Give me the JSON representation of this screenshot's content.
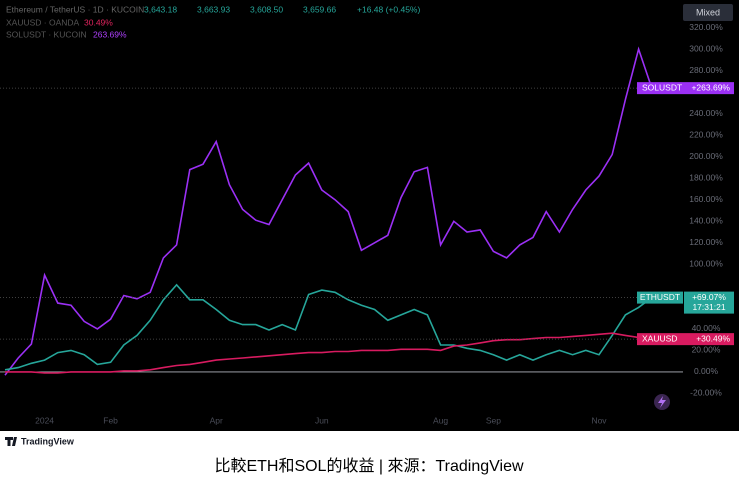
{
  "header": {
    "symbol_line": "Ethereum / TetherUS · 1D · KUCOIN",
    "ohlc": [
      "3,643.18",
      "3,663.93",
      "3,608.50",
      "3,659.66",
      "+16.48 (+0.45%)"
    ],
    "mixed_button": "Mixed"
  },
  "chart_data": {
    "type": "line",
    "categories": [
      null,
      null,
      null,
      "2024",
      null,
      null,
      null,
      null,
      "Feb",
      null,
      null,
      null,
      null,
      null,
      null,
      null,
      "Apr",
      null,
      null,
      null,
      null,
      null,
      null,
      null,
      "Jun",
      null,
      null,
      null,
      null,
      null,
      null,
      null,
      null,
      "Aug",
      null,
      null,
      null,
      "Sep",
      null,
      null,
      null,
      null,
      null,
      null,
      null,
      "Nov",
      null,
      null,
      null,
      null
    ],
    "ylim": [
      -40,
      340
    ],
    "yticks": [
      {
        "value": 320,
        "label": "320.00%"
      },
      {
        "value": 300,
        "label": "300.00%"
      },
      {
        "value": 280,
        "label": "280.00%"
      },
      {
        "value": 240,
        "label": "240.00%"
      },
      {
        "value": 220,
        "label": "220.00%"
      },
      {
        "value": 200,
        "label": "200.00%"
      },
      {
        "value": 180,
        "label": "180.00%"
      },
      {
        "value": 160,
        "label": "160.00%"
      },
      {
        "value": 140,
        "label": "140.00%"
      },
      {
        "value": 120,
        "label": "120.00%"
      },
      {
        "value": 100,
        "label": "100.00%"
      },
      {
        "value": 40,
        "label": "40.00%"
      },
      {
        "value": 20,
        "label": "20.00%"
      },
      {
        "value": 0,
        "label": "0.00%"
      },
      {
        "value": -20,
        "label": "-20.00%"
      }
    ],
    "series": [
      {
        "name": "SOLUSDT",
        "legend_name": "SOLUSDT · KUCOIN",
        "legend_value": "263.69%",
        "color": "#9b30f5",
        "values": [
          -3,
          13,
          26,
          90,
          64,
          62,
          47,
          40,
          49,
          71,
          68,
          74,
          106,
          118,
          188,
          193,
          214,
          174,
          151,
          141,
          137,
          160,
          183,
          194,
          169,
          160,
          149,
          113,
          120,
          127,
          162,
          186,
          190,
          118,
          140,
          130,
          132,
          112,
          106,
          118,
          125,
          149,
          130,
          151,
          169,
          182,
          202,
          253,
          300,
          263.69
        ],
        "value_labels": [
          null,
          null,
          null,
          null,
          null,
          null,
          null,
          null,
          null,
          null,
          null,
          null,
          null,
          null,
          null,
          null,
          null,
          null,
          null,
          null,
          null,
          null,
          null,
          null,
          null,
          null,
          null,
          null,
          null,
          null,
          null,
          null,
          null,
          null,
          null,
          null,
          null,
          null,
          null,
          null,
          null,
          null,
          null,
          null,
          null,
          null,
          null,
          null,
          null,
          "+263.69%"
        ]
      },
      {
        "name": "ETHUSDT",
        "countdown": "17:31:21",
        "color": "#26a69a",
        "values": [
          2,
          4,
          8,
          11,
          18,
          20,
          16,
          7,
          9,
          25,
          34,
          48,
          67,
          81,
          67,
          67,
          58,
          48,
          44,
          44,
          39,
          44,
          39,
          72,
          76,
          74,
          67,
          62,
          58,
          48,
          53,
          58,
          53,
          25,
          25,
          22,
          20,
          16,
          11,
          16,
          11,
          16,
          20,
          16,
          20,
          16,
          34,
          53,
          60,
          69.07
        ],
        "value_labels": [
          null,
          null,
          null,
          null,
          null,
          null,
          null,
          null,
          null,
          null,
          null,
          null,
          null,
          null,
          null,
          null,
          null,
          null,
          null,
          null,
          null,
          null,
          null,
          null,
          null,
          null,
          null,
          null,
          null,
          null,
          null,
          null,
          null,
          null,
          null,
          null,
          null,
          null,
          null,
          null,
          null,
          null,
          null,
          null,
          null,
          null,
          null,
          null,
          null,
          "+69.07%"
        ]
      },
      {
        "name": "XAUUSD",
        "legend_name": "XAUUSD · OANDA",
        "legend_value": "30.49%",
        "color": "#d81b60",
        "values": [
          0,
          0,
          0,
          -1,
          -1,
          0,
          0,
          0,
          0,
          1,
          1,
          2,
          4,
          6,
          7,
          9,
          11,
          12,
          13,
          14,
          15,
          16,
          17,
          18,
          18,
          19,
          19,
          20,
          20,
          20,
          21,
          21,
          21,
          20,
          24,
          25,
          27,
          29,
          30,
          30,
          31,
          32,
          32,
          33,
          34,
          35,
          36,
          34,
          32,
          30.49
        ],
        "value_labels": [
          null,
          null,
          null,
          null,
          null,
          null,
          null,
          null,
          null,
          null,
          null,
          null,
          null,
          null,
          null,
          null,
          null,
          null,
          null,
          null,
          null,
          null,
          null,
          null,
          null,
          null,
          null,
          null,
          null,
          null,
          null,
          null,
          null,
          null,
          null,
          null,
          null,
          null,
          null,
          null,
          null,
          null,
          null,
          null,
          null,
          null,
          null,
          null,
          null,
          "+30.49%"
        ]
      }
    ]
  },
  "footer": {
    "brand": "TradingView",
    "caption": "比較ETH和SOL的收益 | 來源：TradingView"
  }
}
